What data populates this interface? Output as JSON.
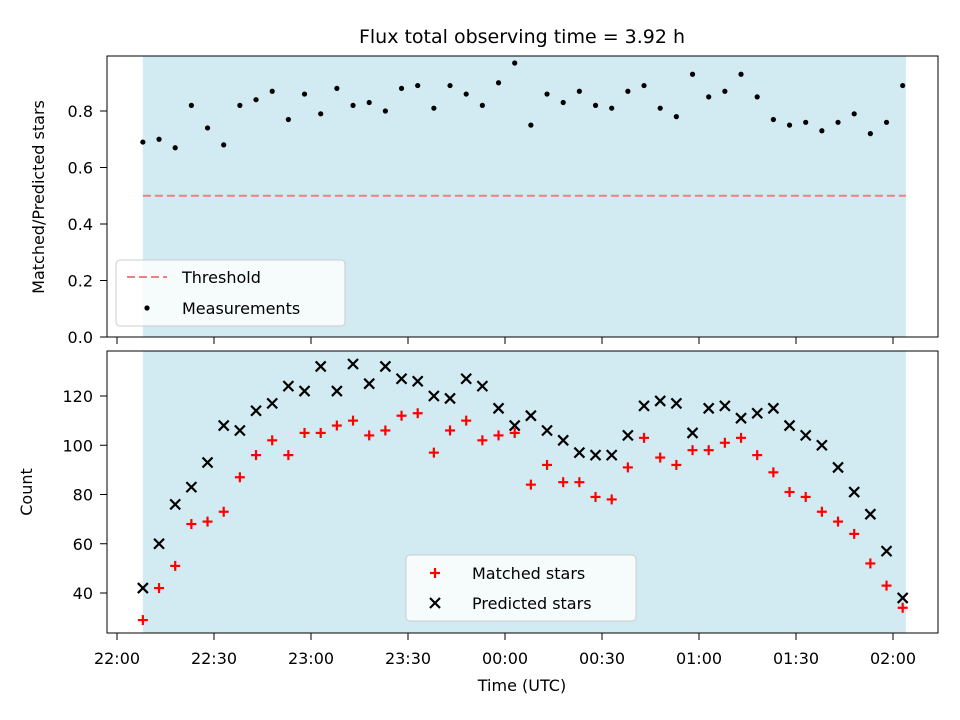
{
  "chart_data": [
    {
      "type": "scatter",
      "title": "Flux total observing time = 3.92 h",
      "xlabel": "",
      "ylabel": "Matched/Predicted stars",
      "ylim": [
        0,
        1
      ],
      "yticks": [
        "0.0",
        "0.2",
        "0.4",
        "0.6",
        "0.8"
      ],
      "shaded_span": [
        "22:08",
        "02:04"
      ],
      "shade_color": "#add8e6",
      "grid": false,
      "legend_position": "lower-left",
      "threshold": {
        "name": "Threshold",
        "value": 0.5,
        "color": "#f08080"
      },
      "series": [
        {
          "name": "Measurements",
          "color": "#000000",
          "marker": "dot",
          "x": [
            "22:08",
            "22:13",
            "22:18",
            "22:23",
            "22:28",
            "22:33",
            "22:38",
            "22:43",
            "22:48",
            "22:53",
            "22:58",
            "23:03",
            "23:08",
            "23:13",
            "23:18",
            "23:23",
            "23:28",
            "23:33",
            "23:38",
            "23:43",
            "23:48",
            "23:53",
            "23:58",
            "00:03",
            "00:08",
            "00:13",
            "00:18",
            "00:23",
            "00:28",
            "00:33",
            "00:38",
            "00:43",
            "00:48",
            "00:53",
            "00:58",
            "01:03",
            "01:08",
            "01:13",
            "01:18",
            "01:23",
            "01:28",
            "01:33",
            "01:38",
            "01:43",
            "01:48",
            "01:53",
            "01:58",
            "02:03"
          ],
          "y": [
            0.69,
            0.7,
            0.67,
            0.82,
            0.74,
            0.68,
            0.82,
            0.84,
            0.87,
            0.77,
            0.86,
            0.79,
            0.88,
            0.82,
            0.83,
            0.8,
            0.88,
            0.89,
            0.81,
            0.89,
            0.86,
            0.82,
            0.9,
            0.97,
            0.75,
            0.86,
            0.83,
            0.87,
            0.82,
            0.81,
            0.87,
            0.89,
            0.81,
            0.78,
            0.93,
            0.85,
            0.87,
            0.93,
            0.85,
            0.77,
            0.75,
            0.76,
            0.73,
            0.76,
            0.79,
            0.72,
            0.76,
            0.89
          ]
        }
      ]
    },
    {
      "type": "scatter",
      "title": "",
      "xlabel": "Time (UTC)",
      "ylabel": "Count",
      "ylim": [
        24,
        138
      ],
      "yticks": [
        "40",
        "60",
        "80",
        "100",
        "120"
      ],
      "xticks": [
        "22:00",
        "22:30",
        "23:00",
        "23:30",
        "00:00",
        "00:30",
        "01:00",
        "01:30",
        "02:00"
      ],
      "shaded_span": [
        "22:08",
        "02:04"
      ],
      "shade_color": "#add8e6",
      "grid": false,
      "legend_position": "lower-center",
      "series": [
        {
          "name": "Matched stars",
          "color": "#ff0000",
          "marker": "plus",
          "x": [
            "22:08",
            "22:13",
            "22:18",
            "22:23",
            "22:28",
            "22:33",
            "22:38",
            "22:43",
            "22:48",
            "22:53",
            "22:58",
            "23:03",
            "23:08",
            "23:13",
            "23:18",
            "23:23",
            "23:28",
            "23:33",
            "23:38",
            "23:43",
            "23:48",
            "23:53",
            "23:58",
            "00:03",
            "00:08",
            "00:13",
            "00:18",
            "00:23",
            "00:28",
            "00:33",
            "00:38",
            "00:43",
            "00:48",
            "00:53",
            "00:58",
            "01:03",
            "01:08",
            "01:13",
            "01:18",
            "01:23",
            "01:28",
            "01:33",
            "01:38",
            "01:43",
            "01:48",
            "01:53",
            "01:58",
            "02:03"
          ],
          "y": [
            29,
            42,
            51,
            68,
            69,
            73,
            87,
            96,
            102,
            96,
            105,
            105,
            108,
            110,
            104,
            106,
            112,
            113,
            97,
            106,
            110,
            102,
            104,
            105,
            84,
            92,
            85,
            85,
            79,
            78,
            91,
            103,
            95,
            92,
            98,
            98,
            101,
            103,
            96,
            89,
            81,
            79,
            73,
            69,
            64,
            52,
            43,
            34
          ]
        },
        {
          "name": "Predicted stars",
          "color": "#000000",
          "marker": "cross",
          "x": [
            "22:08",
            "22:13",
            "22:18",
            "22:23",
            "22:28",
            "22:33",
            "22:38",
            "22:43",
            "22:48",
            "22:53",
            "22:58",
            "23:03",
            "23:08",
            "23:13",
            "23:18",
            "23:23",
            "23:28",
            "23:33",
            "23:38",
            "23:43",
            "23:48",
            "23:53",
            "23:58",
            "00:03",
            "00:08",
            "00:13",
            "00:18",
            "00:23",
            "00:28",
            "00:33",
            "00:38",
            "00:43",
            "00:48",
            "00:53",
            "00:58",
            "01:03",
            "01:08",
            "01:13",
            "01:18",
            "01:23",
            "01:28",
            "01:33",
            "01:38",
            "01:43",
            "01:48",
            "01:53",
            "01:58",
            "02:03"
          ],
          "y": [
            42,
            60,
            76,
            83,
            93,
            108,
            106,
            114,
            117,
            124,
            122,
            132,
            122,
            133,
            125,
            132,
            127,
            126,
            120,
            119,
            127,
            124,
            115,
            108,
            112,
            106,
            102,
            97,
            96,
            96,
            104,
            116,
            118,
            117,
            105,
            115,
            116,
            111,
            113,
            115,
            108,
            104,
            100,
            91,
            81,
            72,
            57,
            38
          ]
        }
      ]
    }
  ]
}
